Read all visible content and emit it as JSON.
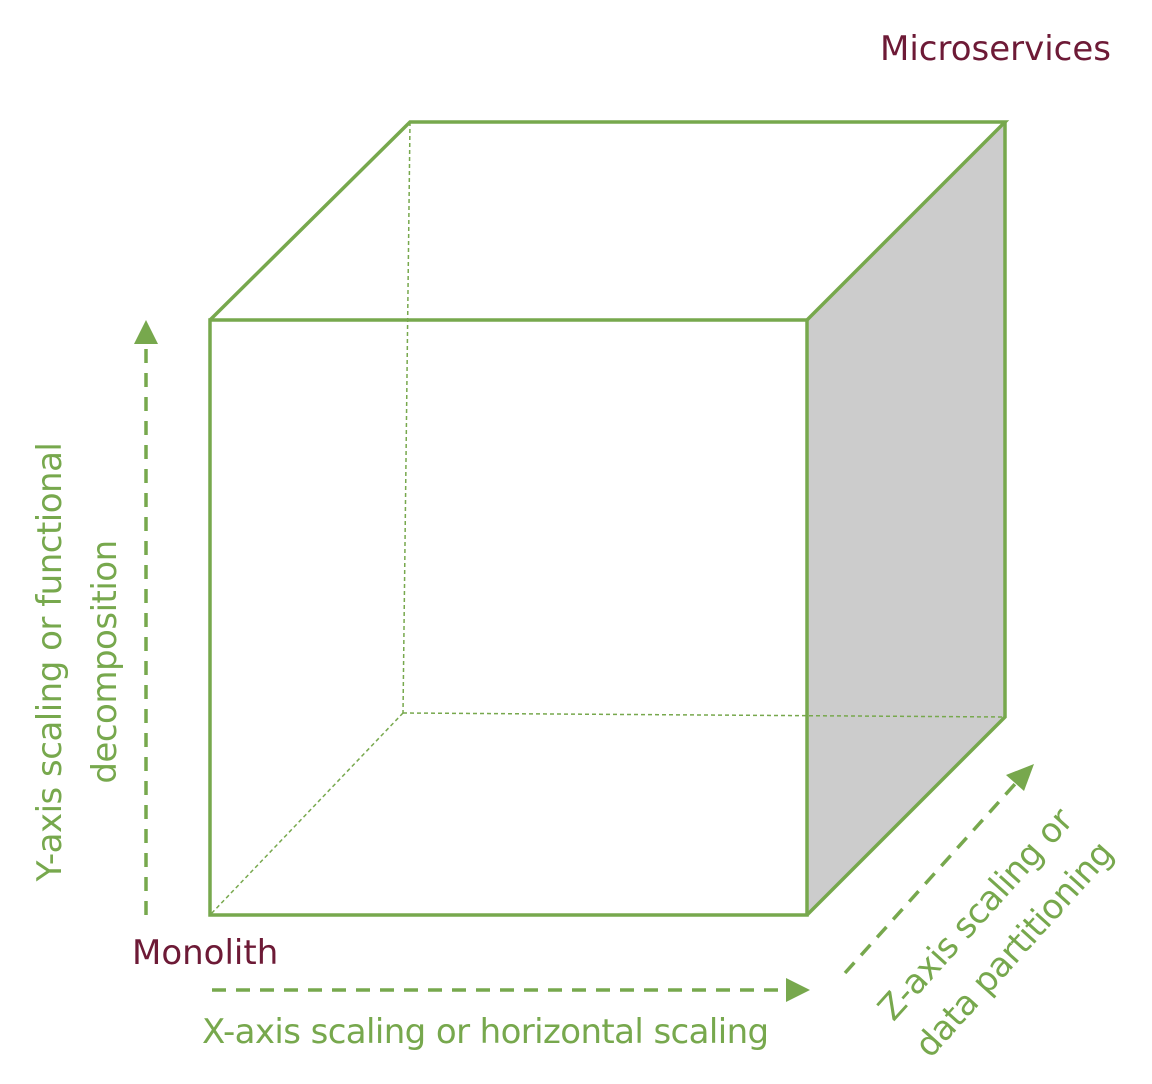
{
  "labels": {
    "microservices": "Microservices",
    "monolith": "Monolith",
    "y_axis": [
      "Y-axis scaling or functional",
      "decomposition"
    ],
    "x_axis": "X-axis scaling or horizontal scaling",
    "z_axis": [
      "Z-axis scaling or",
      "data partitioning"
    ]
  },
  "colors": {
    "cube_green": "#77a84d",
    "accent_maroon": "#6d1a36",
    "side_face_gray": "#cccccc"
  }
}
